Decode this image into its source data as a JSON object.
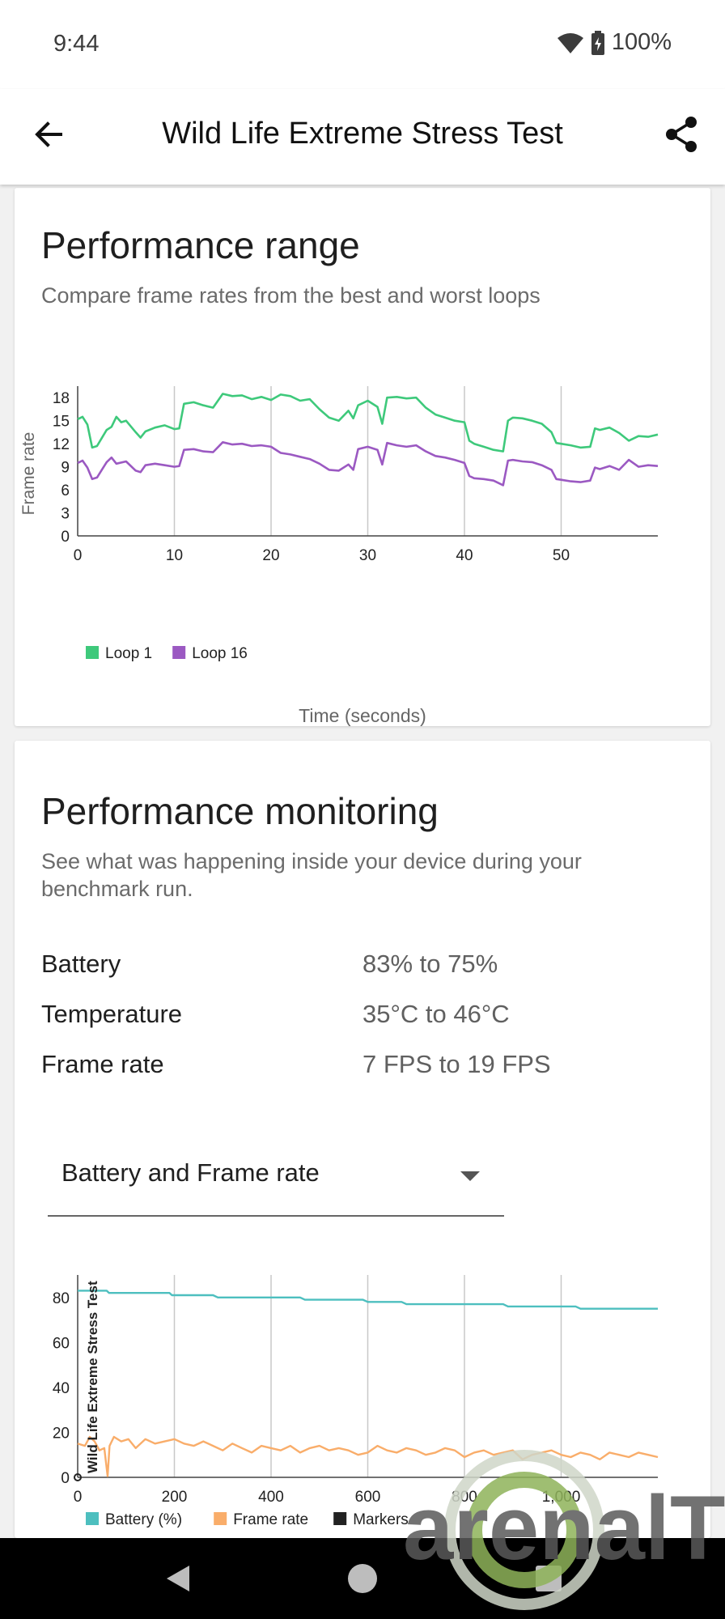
{
  "status": {
    "time": "9:44",
    "battery": "100%",
    "icons": [
      "wifi-icon",
      "battery-charging-icon"
    ]
  },
  "app_bar": {
    "title": "Wild Life Extreme Stress Test",
    "back_icon": "arrow-left-icon",
    "share_icon": "share-icon"
  },
  "performance_range": {
    "title": "Performance range",
    "subtitle": "Compare frame rates from the best and worst loops"
  },
  "performance_monitoring": {
    "title": "Performance monitoring",
    "subtitle": "See what was happening inside your device during your benchmark run.",
    "rows": [
      {
        "label": "Battery",
        "value": "83% to 75%"
      },
      {
        "label": "Temperature",
        "value": "35°C to 46°C"
      },
      {
        "label": "Frame rate",
        "value": "7 FPS to 19 FPS"
      }
    ],
    "dropdown": {
      "selected": "Battery and Frame rate"
    }
  },
  "colors": {
    "loop1": "#3ec97b",
    "loop16": "#9b59c2",
    "battery": "#4dbfbf",
    "framerate": "#f9ad6a",
    "markers": "#222222"
  },
  "nav": {
    "icons": [
      "back-triangle-icon",
      "home-circle-icon",
      "recents-square-icon"
    ]
  },
  "chart_data": [
    {
      "type": "line",
      "title": "",
      "xlabel": "Time (seconds)",
      "ylabel": "Frame rate",
      "xlim": [
        0,
        60
      ],
      "ylim": [
        0,
        19.5
      ],
      "x_ticks": [
        "0",
        "10",
        "20",
        "30",
        "40",
        "50"
      ],
      "y_ticks": [
        "0",
        "3",
        "6",
        "9",
        "12",
        "15",
        "18"
      ],
      "grid": "vertical",
      "legend": "bottom-left",
      "series": [
        {
          "name": "Loop 1",
          "points": [
            [
              0,
              15.2
            ],
            [
              0.5,
              15.5
            ],
            [
              1,
              14.5
            ],
            [
              1.5,
              11.5
            ],
            [
              2,
              11.7
            ],
            [
              3,
              13.8
            ],
            [
              3.5,
              14.2
            ],
            [
              4,
              15.5
            ],
            [
              4.5,
              14.8
            ],
            [
              5,
              15.0
            ],
            [
              6,
              13.5
            ],
            [
              6.5,
              12.8
            ],
            [
              7,
              13.6
            ],
            [
              8,
              14.1
            ],
            [
              9,
              14.4
            ],
            [
              10,
              13.9
            ],
            [
              10.5,
              14.0
            ],
            [
              11,
              17.2
            ],
            [
              12,
              17.4
            ],
            [
              13,
              17.0
            ],
            [
              14,
              16.7
            ],
            [
              15,
              18.5
            ],
            [
              16,
              18.2
            ],
            [
              17,
              18.3
            ],
            [
              18,
              17.8
            ],
            [
              19,
              18.1
            ],
            [
              20,
              17.7
            ],
            [
              21,
              18.4
            ],
            [
              22,
              18.2
            ],
            [
              23,
              17.6
            ],
            [
              24,
              17.8
            ],
            [
              25,
              16.5
            ],
            [
              26,
              15.4
            ],
            [
              27,
              15.0
            ],
            [
              28,
              16.3
            ],
            [
              28.5,
              15.3
            ],
            [
              29,
              17.0
            ],
            [
              30,
              17.6
            ],
            [
              31,
              16.8
            ],
            [
              31.5,
              14.6
            ],
            [
              32,
              18.0
            ],
            [
              33,
              18.1
            ],
            [
              34,
              17.9
            ],
            [
              35,
              18.0
            ],
            [
              36,
              16.7
            ],
            [
              37,
              15.8
            ],
            [
              38,
              15.4
            ],
            [
              39,
              15.0
            ],
            [
              40,
              14.8
            ],
            [
              40.5,
              12.4
            ],
            [
              41,
              12.0
            ],
            [
              42,
              11.6
            ],
            [
              43,
              11.2
            ],
            [
              44,
              11.0
            ],
            [
              44.5,
              15.0
            ],
            [
              45,
              15.4
            ],
            [
              46,
              15.3
            ],
            [
              47,
              15.0
            ],
            [
              48,
              14.6
            ],
            [
              49,
              13.5
            ],
            [
              49.5,
              12.1
            ],
            [
              50,
              12.0
            ],
            [
              51,
              11.8
            ],
            [
              52,
              11.5
            ],
            [
              53,
              11.6
            ],
            [
              53.5,
              14.0
            ],
            [
              54,
              13.8
            ],
            [
              55,
              14.1
            ],
            [
              56,
              13.4
            ],
            [
              57,
              12.4
            ],
            [
              58,
              13.0
            ],
            [
              59,
              12.9
            ],
            [
              60,
              13.2
            ]
          ]
        },
        {
          "name": "Loop 16",
          "points": [
            [
              0,
              9.5
            ],
            [
              0.5,
              9.8
            ],
            [
              1,
              8.9
            ],
            [
              1.5,
              7.4
            ],
            [
              2,
              7.6
            ],
            [
              3,
              9.6
            ],
            [
              3.5,
              10.2
            ],
            [
              4,
              9.4
            ],
            [
              5,
              9.7
            ],
            [
              6,
              8.5
            ],
            [
              6.5,
              8.3
            ],
            [
              7,
              9.2
            ],
            [
              8,
              9.4
            ],
            [
              9,
              9.2
            ],
            [
              10,
              9.0
            ],
            [
              10.5,
              9.1
            ],
            [
              11,
              11.2
            ],
            [
              12,
              11.3
            ],
            [
              13,
              11.0
            ],
            [
              14,
              10.9
            ],
            [
              15,
              12.2
            ],
            [
              16,
              11.9
            ],
            [
              17,
              12.0
            ],
            [
              18,
              11.7
            ],
            [
              19,
              11.8
            ],
            [
              20,
              11.6
            ],
            [
              21,
              10.8
            ],
            [
              22,
              10.6
            ],
            [
              23,
              10.3
            ],
            [
              24,
              10.0
            ],
            [
              25,
              9.4
            ],
            [
              26,
              8.6
            ],
            [
              27,
              8.5
            ],
            [
              28,
              9.3
            ],
            [
              28.5,
              8.6
            ],
            [
              29,
              11.3
            ],
            [
              30,
              11.6
            ],
            [
              31,
              11.2
            ],
            [
              31.5,
              9.3
            ],
            [
              32,
              12.1
            ],
            [
              33,
              11.8
            ],
            [
              34,
              11.6
            ],
            [
              35,
              11.8
            ],
            [
              36,
              11.0
            ],
            [
              37,
              10.4
            ],
            [
              38,
              10.2
            ],
            [
              39,
              9.9
            ],
            [
              40,
              9.5
            ],
            [
              40.5,
              7.8
            ],
            [
              41,
              7.5
            ],
            [
              42,
              7.4
            ],
            [
              43,
              7.2
            ],
            [
              44,
              6.6
            ],
            [
              44.5,
              9.8
            ],
            [
              45,
              9.9
            ],
            [
              46,
              9.7
            ],
            [
              47,
              9.6
            ],
            [
              48,
              9.2
            ],
            [
              49,
              8.6
            ],
            [
              49.5,
              7.4
            ],
            [
              50,
              7.3
            ],
            [
              51,
              7.1
            ],
            [
              52,
              7.0
            ],
            [
              53,
              7.2
            ],
            [
              53.5,
              8.9
            ],
            [
              54,
              8.7
            ],
            [
              55,
              9.1
            ],
            [
              56,
              8.6
            ],
            [
              57,
              9.9
            ],
            [
              58,
              9.0
            ],
            [
              59,
              9.2
            ],
            [
              60,
              9.1
            ]
          ]
        }
      ]
    },
    {
      "type": "line",
      "title": "",
      "xlabel": "",
      "ylabel": "",
      "xlim": [
        0,
        1200
      ],
      "ylim": [
        0,
        90
      ],
      "x_ticks": [
        "0",
        "200",
        "400",
        "600",
        "800",
        "1,000"
      ],
      "y_ticks": [
        "0",
        "20",
        "40",
        "60",
        "80"
      ],
      "grid": "vertical",
      "legend": "bottom-left",
      "marker_label": "Wild Life Extreme Stress Test",
      "marker_x": 30,
      "series": [
        {
          "name": "Battery (%)",
          "points": [
            [
              0,
              83
            ],
            [
              60,
              83
            ],
            [
              65,
              82
            ],
            [
              190,
              82
            ],
            [
              195,
              81
            ],
            [
              280,
              81
            ],
            [
              290,
              80
            ],
            [
              460,
              80
            ],
            [
              470,
              79
            ],
            [
              590,
              79
            ],
            [
              600,
              78
            ],
            [
              670,
              78
            ],
            [
              680,
              77
            ],
            [
              880,
              77
            ],
            [
              890,
              76
            ],
            [
              1030,
              76
            ],
            [
              1040,
              75
            ],
            [
              1200,
              75
            ]
          ]
        },
        {
          "name": "Frame rate",
          "points": [
            [
              0,
              15
            ],
            [
              15,
              14
            ],
            [
              25,
              18
            ],
            [
              35,
              16
            ],
            [
              45,
              12
            ],
            [
              55,
              13
            ],
            [
              62,
              0.5
            ],
            [
              66,
              14
            ],
            [
              75,
              18
            ],
            [
              90,
              16
            ],
            [
              105,
              17
            ],
            [
              120,
              13
            ],
            [
              140,
              17
            ],
            [
              160,
              15
            ],
            [
              180,
              16
            ],
            [
              200,
              17
            ],
            [
              220,
              15
            ],
            [
              240,
              14
            ],
            [
              260,
              16
            ],
            [
              280,
              14
            ],
            [
              300,
              12
            ],
            [
              320,
              15
            ],
            [
              340,
              13
            ],
            [
              360,
              11
            ],
            [
              380,
              14
            ],
            [
              400,
              13
            ],
            [
              420,
              12
            ],
            [
              440,
              14
            ],
            [
              460,
              11
            ],
            [
              480,
              13
            ],
            [
              500,
              14
            ],
            [
              520,
              12
            ],
            [
              540,
              13
            ],
            [
              560,
              12
            ],
            [
              580,
              10
            ],
            [
              600,
              11
            ],
            [
              620,
              14
            ],
            [
              640,
              12
            ],
            [
              660,
              11
            ],
            [
              680,
              13
            ],
            [
              700,
              12
            ],
            [
              720,
              10
            ],
            [
              740,
              11
            ],
            [
              760,
              13
            ],
            [
              780,
              12
            ],
            [
              800,
              9
            ],
            [
              820,
              11
            ],
            [
              840,
              12
            ],
            [
              860,
              10
            ],
            [
              880,
              11
            ],
            [
              900,
              12
            ],
            [
              920,
              8
            ],
            [
              940,
              10
            ],
            [
              960,
              11
            ],
            [
              980,
              12
            ],
            [
              1000,
              10
            ],
            [
              1020,
              9
            ],
            [
              1040,
              11
            ],
            [
              1060,
              10
            ],
            [
              1080,
              8
            ],
            [
              1100,
              11
            ],
            [
              1120,
              10
            ],
            [
              1140,
              9
            ],
            [
              1160,
              11
            ],
            [
              1180,
              10
            ],
            [
              1200,
              9
            ]
          ]
        },
        {
          "name": "Markers",
          "points": []
        }
      ]
    }
  ]
}
